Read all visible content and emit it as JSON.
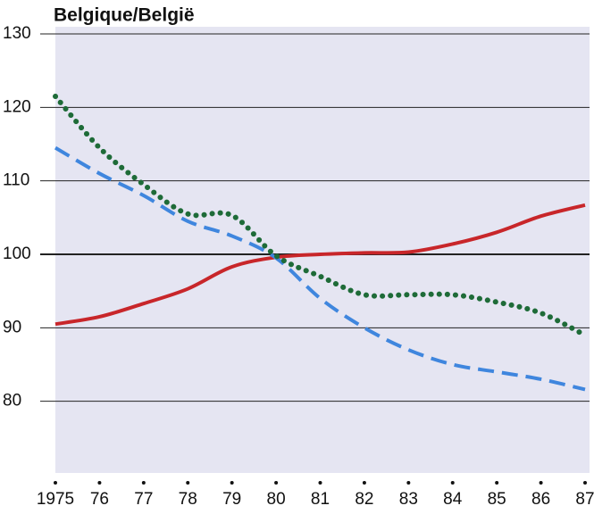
{
  "chart_data": {
    "type": "line",
    "title": "Belgique/België",
    "x": [
      1975,
      1976,
      1977,
      1978,
      1979,
      1980,
      1981,
      1982,
      1983,
      1984,
      1985,
      1986,
      1987
    ],
    "series": [
      {
        "color": "#c8262a",
        "style": "solid",
        "values": [
          90.5,
          91.5,
          93.3,
          95.3,
          98.3,
          99.6,
          100,
          100.2,
          100.3,
          101.4,
          103,
          105.2,
          106.7
        ]
      },
      {
        "color": "#3f86de",
        "style": "dashed",
        "values": [
          114.5,
          111,
          108,
          104.5,
          102.5,
          99.5,
          94,
          90,
          87,
          85,
          84,
          83,
          81.6
        ]
      },
      {
        "color": "#1e6b38",
        "style": "dotted",
        "values": [
          121.5,
          114.5,
          109.5,
          105.5,
          105.3,
          99.8,
          97,
          94.5,
          94.5,
          94.5,
          93.5,
          92,
          89
        ]
      }
    ],
    "xlim": [
      1975,
      1987
    ],
    "xticks": [
      1975,
      {
        "value": 1976,
        "label": "76"
      },
      {
        "value": 1977,
        "label": "77"
      },
      {
        "value": 1978,
        "label": "78"
      },
      {
        "value": 1979,
        "label": "79"
      },
      {
        "value": 1980,
        "label": "80"
      },
      {
        "value": 1981,
        "label": "81"
      },
      {
        "value": 1982,
        "label": "82"
      },
      {
        "value": 1983,
        "label": "83"
      },
      {
        "value": 1984,
        "label": "84"
      },
      {
        "value": 1985,
        "label": "85"
      },
      {
        "value": 1986,
        "label": "86"
      },
      {
        "value": 1987,
        "label": "87"
      }
    ],
    "ylim": [
      70,
      130
    ],
    "yticks": [
      80,
      90,
      100,
      110,
      120,
      130
    ],
    "grid": true,
    "reference_line": 100
  }
}
